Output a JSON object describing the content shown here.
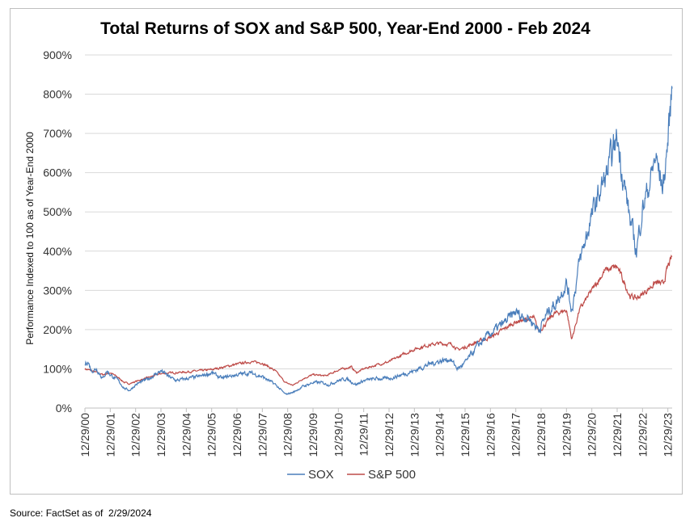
{
  "source_note": "Source: FactSet as of  2/29/2024",
  "chart_data": {
    "type": "line",
    "title": "Total Returns of SOX and S&P 500, Year-End 2000 - Feb 2024",
    "xlabel": "",
    "ylabel": "Performance Indexed to 100 as of Year-End 2000",
    "ylim": [
      0,
      900
    ],
    "ytick_values": [
      0,
      100,
      200,
      300,
      400,
      500,
      600,
      700,
      800,
      900
    ],
    "ytick_labels": [
      "0%",
      "100%",
      "200%",
      "300%",
      "400%",
      "500%",
      "600%",
      "700%",
      "800%",
      "900%"
    ],
    "xlim": [
      2000.99,
      2024.16
    ],
    "xtick_values": [
      2000.99,
      2001.99,
      2002.99,
      2003.99,
      2004.99,
      2005.99,
      2006.99,
      2007.99,
      2008.99,
      2009.99,
      2010.99,
      2011.99,
      2012.99,
      2013.99,
      2014.99,
      2015.99,
      2016.99,
      2017.99,
      2018.99,
      2019.99,
      2020.99,
      2021.99,
      2022.99,
      2023.99
    ],
    "xtick_labels": [
      "12/29/00",
      "12/29/01",
      "12/29/02",
      "12/29/03",
      "12/29/04",
      "12/29/05",
      "12/29/06",
      "12/29/07",
      "12/29/08",
      "12/29/09",
      "12/29/10",
      "12/29/11",
      "12/29/12",
      "12/29/13",
      "12/29/14",
      "12/29/15",
      "12/29/16",
      "12/29/17",
      "12/29/18",
      "12/29/19",
      "12/29/20",
      "12/29/21",
      "12/29/22",
      "12/29/23"
    ],
    "grid": true,
    "legend_position": "bottom-center",
    "series": [
      {
        "name": "SOX",
        "color": "#4a7ebb",
        "x": [
          2000.99,
          2001.1,
          2001.25,
          2001.45,
          2001.7,
          2001.85,
          2002.0,
          2002.3,
          2002.55,
          2002.75,
          2003.0,
          2003.5,
          2004.0,
          2004.3,
          2004.6,
          2004.99,
          2005.5,
          2006.0,
          2006.4,
          2006.6,
          2007.0,
          2007.5,
          2007.99,
          2008.5,
          2008.9,
          2009.2,
          2009.6,
          2009.99,
          2010.3,
          2010.6,
          2010.99,
          2011.3,
          2011.7,
          2011.99,
          2012.5,
          2012.99,
          2013.5,
          2013.99,
          2014.5,
          2014.99,
          2015.4,
          2015.7,
          2015.99,
          2016.5,
          2016.99,
          2017.5,
          2017.99,
          2018.2,
          2018.5,
          2018.9,
          2019.3,
          2019.6,
          2019.99,
          2020.2,
          2020.5,
          2020.99,
          2021.3,
          2021.6,
          2021.99,
          2022.3,
          2022.5,
          2022.75,
          2022.99,
          2023.3,
          2023.5,
          2023.8,
          2023.99,
          2024.16
        ],
        "values": [
          110,
          120,
          95,
          100,
          75,
          95,
          85,
          70,
          50,
          45,
          60,
          75,
          95,
          80,
          70,
          75,
          80,
          90,
          75,
          80,
          85,
          90,
          80,
          60,
          35,
          40,
          55,
          65,
          65,
          60,
          70,
          75,
          60,
          70,
          75,
          75,
          85,
          95,
          110,
          120,
          125,
          100,
          115,
          160,
          190,
          215,
          245,
          235,
          230,
          200,
          250,
          270,
          320,
          250,
          370,
          490,
          550,
          600,
          690,
          560,
          480,
          400,
          510,
          580,
          640,
          560,
          680,
          820
        ]
      },
      {
        "name": "S&P 500",
        "color": "#be4b48",
        "x": [
          2000.99,
          2001.25,
          2001.7,
          2001.99,
          2002.3,
          2002.55,
          2002.75,
          2003.0,
          2003.5,
          2003.99,
          2004.5,
          2004.99,
          2005.5,
          2005.99,
          2006.5,
          2006.99,
          2007.5,
          2007.99,
          2008.5,
          2008.9,
          2009.2,
          2009.6,
          2009.99,
          2010.5,
          2010.99,
          2011.5,
          2011.7,
          2011.99,
          2012.5,
          2012.99,
          2013.5,
          2013.99,
          2014.5,
          2014.99,
          2015.5,
          2015.7,
          2015.99,
          2016.5,
          2016.99,
          2017.5,
          2017.99,
          2018.7,
          2018.9,
          2019.5,
          2019.99,
          2020.2,
          2020.5,
          2020.99,
          2021.5,
          2021.99,
          2022.5,
          2022.75,
          2022.99,
          2023.5,
          2023.8,
          2023.99,
          2024.16
        ],
        "values": [
          100,
          95,
          85,
          90,
          78,
          65,
          62,
          68,
          78,
          88,
          90,
          92,
          95,
          98,
          105,
          112,
          118,
          115,
          95,
          65,
          58,
          75,
          85,
          82,
          97,
          105,
          90,
          100,
          110,
          118,
          135,
          150,
          160,
          165,
          162,
          148,
          155,
          170,
          180,
          200,
          220,
          230,
          195,
          240,
          250,
          175,
          250,
          300,
          350,
          360,
          285,
          280,
          290,
          320,
          315,
          360,
          385
        ]
      }
    ]
  }
}
